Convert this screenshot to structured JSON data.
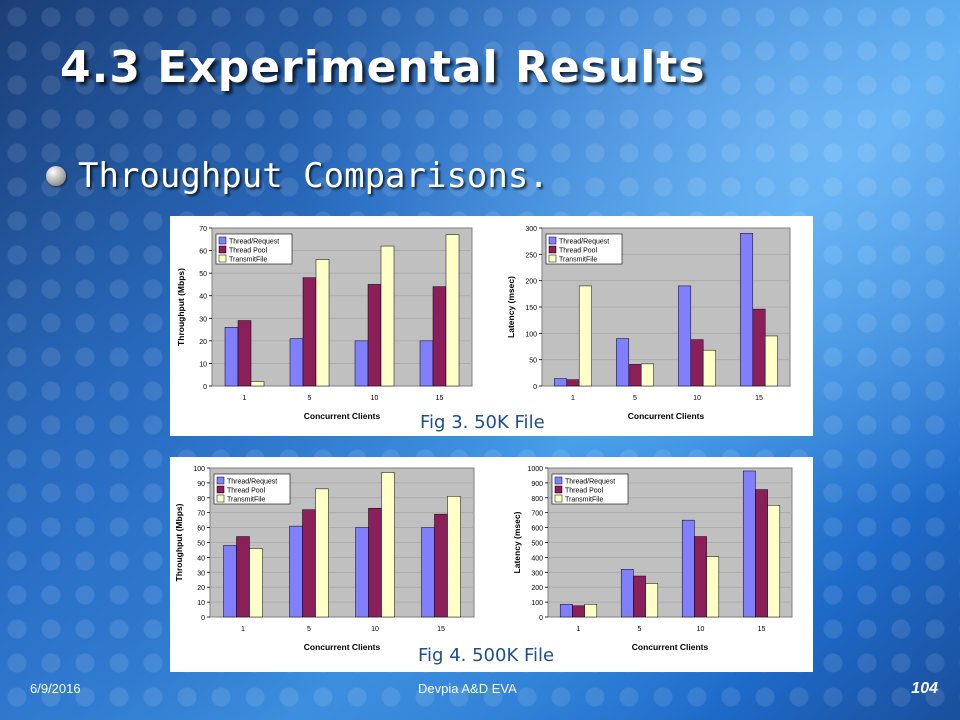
{
  "slide": {
    "title": "4.3 Experimental Results",
    "bullet": "Throughput Comparisons.",
    "footer_date": "6/9/2016",
    "footer_center": "Devpia A&D EVA",
    "page_number": "104"
  },
  "figures": [
    {
      "caption": "Fig 3. 50K File"
    },
    {
      "caption": "Fig 4. 500K File"
    }
  ],
  "colors": {
    "thread_request": "#8080ff",
    "thread_pool": "#8a1f5a",
    "transmit_file": "#ffffc8",
    "plot_bg": "#c0c0c0"
  },
  "chart_data": [
    {
      "type": "bar",
      "categories": [
        "1",
        "5",
        "10",
        "15"
      ],
      "xlabel": "Concurrent Clients",
      "ylabel": "Throughput (Mbps)",
      "ylim": [
        0,
        70
      ],
      "yticks": [
        0,
        10,
        20,
        30,
        40,
        50,
        60,
        70
      ],
      "legend_position": "top-left",
      "series": [
        {
          "name": "Thread/Request",
          "values": [
            26,
            21,
            20,
            20
          ]
        },
        {
          "name": "Thread Pool",
          "values": [
            29,
            48,
            45,
            44
          ]
        },
        {
          "name": "TransmitFile",
          "values": [
            2,
            56,
            62,
            67
          ]
        }
      ]
    },
    {
      "type": "bar",
      "categories": [
        "1",
        "5",
        "10",
        "15"
      ],
      "xlabel": "Concurrent Clients",
      "ylabel": "Latency (msec)",
      "ylim": [
        0,
        300
      ],
      "yticks": [
        0,
        50,
        100,
        150,
        200,
        250,
        300
      ],
      "legend_position": "top-left",
      "series": [
        {
          "name": "Thread/Request",
          "values": [
            14,
            90,
            190,
            290
          ]
        },
        {
          "name": "Thread Pool",
          "values": [
            12,
            41,
            88,
            146
          ]
        },
        {
          "name": "TransmitFile",
          "values": [
            190,
            42,
            68,
            95
          ]
        }
      ]
    },
    {
      "type": "bar",
      "categories": [
        "1",
        "5",
        "10",
        "15"
      ],
      "xlabel": "Concurrent Clients",
      "ylabel": "Throughput (Mbps)",
      "ylim": [
        0,
        100
      ],
      "yticks": [
        0,
        10,
        20,
        30,
        40,
        50,
        60,
        70,
        80,
        90,
        100
      ],
      "legend_position": "top-left",
      "series": [
        {
          "name": "Thread/Request",
          "values": [
            48,
            61,
            60,
            60
          ]
        },
        {
          "name": "Thread Pool",
          "values": [
            54,
            72,
            73,
            69
          ]
        },
        {
          "name": "TransmitFile",
          "values": [
            46,
            86,
            97,
            81
          ]
        }
      ]
    },
    {
      "type": "bar",
      "categories": [
        "1",
        "5",
        "10",
        "15"
      ],
      "xlabel": "Concurrent Clients",
      "ylabel": "Latency (msec)",
      "ylim": [
        0,
        1000
      ],
      "yticks": [
        0,
        100,
        200,
        300,
        400,
        500,
        600,
        700,
        800,
        900,
        1000
      ],
      "legend_position": "top-left",
      "series": [
        {
          "name": "Thread/Request",
          "values": [
            85,
            320,
            650,
            980
          ]
        },
        {
          "name": "Thread Pool",
          "values": [
            75,
            275,
            540,
            855
          ]
        },
        {
          "name": "TransmitFile",
          "values": [
            85,
            225,
            405,
            750
          ]
        }
      ]
    }
  ]
}
